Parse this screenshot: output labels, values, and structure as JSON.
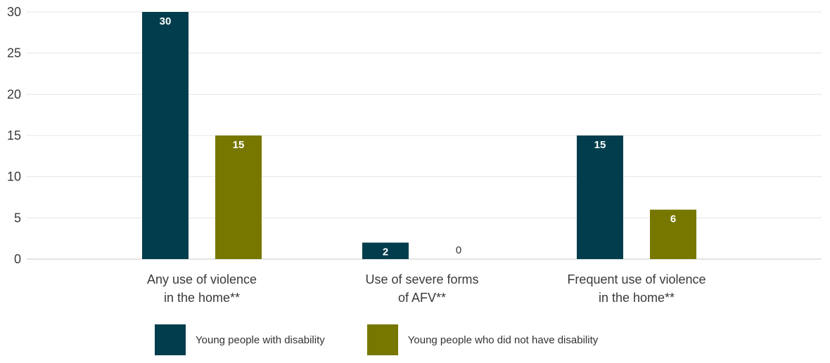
{
  "chart_data": {
    "type": "bar",
    "categories": [
      [
        "Any use of violence",
        "in the home**"
      ],
      [
        "Use of severe forms",
        "of AFV**"
      ],
      [
        "Frequent use of violence",
        "in the home**"
      ]
    ],
    "series": [
      {
        "name": "Young people with disability",
        "values": [
          30,
          2,
          15
        ],
        "color": "#023d4d"
      },
      {
        "name": "Young people who did not have disability",
        "values": [
          15,
          0,
          6
        ],
        "color": "#777700"
      }
    ],
    "ylim": [
      0,
      30
    ],
    "yticks": [
      0,
      5,
      10,
      15,
      20,
      25,
      30
    ],
    "grid": true,
    "legend_position": "bottom"
  }
}
